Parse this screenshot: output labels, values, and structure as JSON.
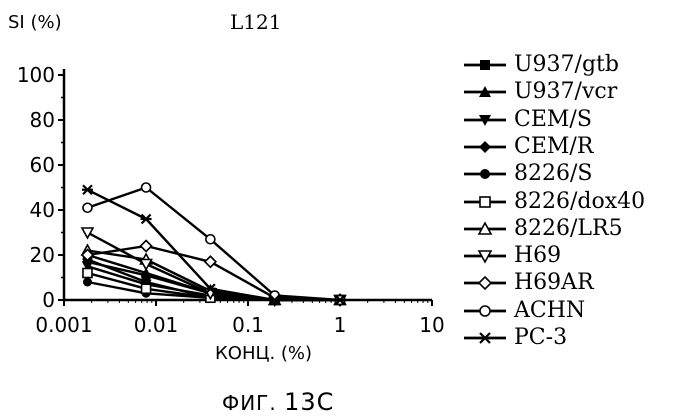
{
  "chart_data": {
    "type": "line",
    "title": "L121",
    "ylabel": "SI (%)",
    "xlabel": "КОНЦ. (%)",
    "x_scale": "log",
    "xlim": [
      0.001,
      10
    ],
    "ylim": [
      0,
      100
    ],
    "x_ticks": [
      0.001,
      0.01,
      0.1,
      1,
      10
    ],
    "x_tick_labels": [
      "0.001",
      "0.01",
      "0.1",
      "1",
      "10"
    ],
    "y_ticks": [
      0,
      20,
      40,
      60,
      80,
      100
    ],
    "y_tick_labels": [
      "0",
      "20",
      "40",
      "60",
      "80",
      "100"
    ],
    "x": [
      0.0018,
      0.0078,
      0.039,
      0.195,
      1.0
    ],
    "series": [
      {
        "name": "U937/gtb",
        "marker": "square-filled",
        "values": [
          18,
          8,
          1,
          0,
          0
        ]
      },
      {
        "name": "U937/vcr",
        "marker": "triangle-up-filled",
        "values": [
          20,
          12,
          3,
          0,
          0
        ]
      },
      {
        "name": "CEM/S",
        "marker": "triangle-down-filled",
        "values": [
          15,
          7,
          2,
          0,
          0
        ]
      },
      {
        "name": "CEM/R",
        "marker": "diamond-filled",
        "values": [
          17,
          11,
          3,
          0,
          0
        ]
      },
      {
        "name": "8226/S",
        "marker": "circle-filled",
        "values": [
          8,
          3,
          1,
          0,
          0
        ]
      },
      {
        "name": "8226/dox40",
        "marker": "square-open",
        "values": [
          12,
          5,
          1,
          0,
          0
        ]
      },
      {
        "name": "8226/LR5",
        "marker": "triangle-up-open",
        "values": [
          22,
          18,
          4,
          0,
          0
        ]
      },
      {
        "name": "H69",
        "marker": "triangle-down-open",
        "values": [
          30,
          16,
          3,
          0,
          0
        ]
      },
      {
        "name": "H69AR",
        "marker": "diamond-open",
        "values": [
          20,
          24,
          17,
          1,
          0
        ]
      },
      {
        "name": "ACHN",
        "marker": "circle-open",
        "values": [
          41,
          50,
          27,
          2,
          0
        ]
      },
      {
        "name": "PC-3",
        "marker": "star",
        "values": [
          49,
          36,
          5,
          0,
          0
        ]
      }
    ],
    "legend_position": "right",
    "grid": false
  },
  "figure_caption": {
    "prefix": "ФИГ.",
    "number": "13C"
  }
}
